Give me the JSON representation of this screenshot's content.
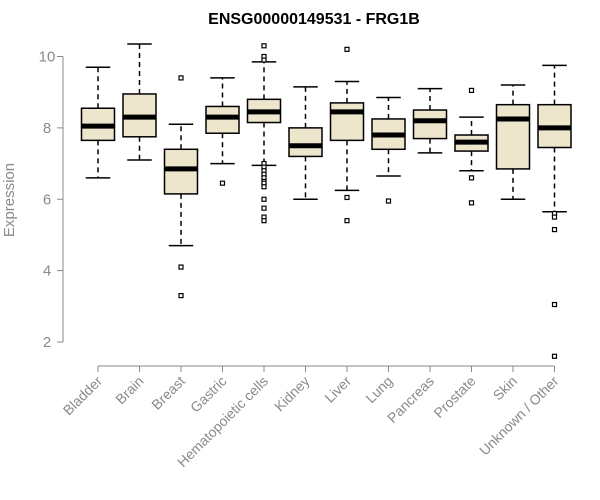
{
  "chart_data": {
    "type": "boxplot",
    "title": "ENSG00000149531 - FRG1B",
    "ylabel": "Expression",
    "xlabel": "",
    "ylim": [
      1.5,
      10.5
    ],
    "yticks": [
      2,
      4,
      6,
      8,
      10
    ],
    "grid": false,
    "legend": "none",
    "colors": {
      "box_fill": "#ede6cc",
      "box_stroke": "#000000",
      "axis": "#8a8a8a"
    },
    "categories": [
      "Bladder",
      "Brain",
      "Breast",
      "Gastric",
      "Hematopoietic cells",
      "Kidney",
      "Liver",
      "Lung",
      "Pancreas",
      "Prostate",
      "Skin",
      "Unknown / Other"
    ],
    "boxes": [
      {
        "category": "Bladder",
        "whisker_low": 6.6,
        "q1": 7.65,
        "median": 8.05,
        "q3": 8.55,
        "whisker_high": 9.7,
        "outliers": []
      },
      {
        "category": "Brain",
        "whisker_low": 7.1,
        "q1": 7.75,
        "median": 8.3,
        "q3": 8.95,
        "whisker_high": 10.35,
        "outliers": []
      },
      {
        "category": "Breast",
        "whisker_low": 4.7,
        "q1": 6.15,
        "median": 6.85,
        "q3": 7.4,
        "whisker_high": 8.1,
        "outliers": [
          9.4,
          4.1,
          3.3
        ]
      },
      {
        "category": "Gastric",
        "whisker_low": 7.0,
        "q1": 7.85,
        "median": 8.3,
        "q3": 8.6,
        "whisker_high": 9.4,
        "outliers": [
          6.45
        ]
      },
      {
        "category": "Hematopoietic cells",
        "whisker_low": 6.95,
        "q1": 8.15,
        "median": 8.45,
        "q3": 8.8,
        "whisker_high": 9.85,
        "outliers": [
          10.3,
          10.0,
          9.9,
          7.0,
          6.9,
          6.8,
          6.7,
          6.6,
          6.5,
          6.45,
          6.35,
          6.0,
          5.75,
          5.5,
          5.4
        ]
      },
      {
        "category": "Kidney",
        "whisker_low": 6.0,
        "q1": 7.2,
        "median": 7.5,
        "q3": 8.0,
        "whisker_high": 9.15,
        "outliers": []
      },
      {
        "category": "Liver",
        "whisker_low": 6.25,
        "q1": 7.65,
        "median": 8.45,
        "q3": 8.7,
        "whisker_high": 9.3,
        "outliers": [
          10.2,
          6.05,
          5.4
        ]
      },
      {
        "category": "Lung",
        "whisker_low": 6.65,
        "q1": 7.4,
        "median": 7.8,
        "q3": 8.25,
        "whisker_high": 8.85,
        "outliers": [
          5.95
        ]
      },
      {
        "category": "Pancreas",
        "whisker_low": 7.3,
        "q1": 7.7,
        "median": 8.2,
        "q3": 8.5,
        "whisker_high": 9.1,
        "outliers": []
      },
      {
        "category": "Prostate",
        "whisker_low": 6.8,
        "q1": 7.35,
        "median": 7.6,
        "q3": 7.8,
        "whisker_high": 8.3,
        "outliers": [
          9.05,
          6.6,
          5.9
        ]
      },
      {
        "category": "Skin",
        "whisker_low": 6.0,
        "q1": 6.85,
        "median": 8.25,
        "q3": 8.65,
        "whisker_high": 9.2,
        "outliers": []
      },
      {
        "category": "Unknown / Other",
        "whisker_low": 5.65,
        "q1": 7.45,
        "median": 8.0,
        "q3": 8.65,
        "whisker_high": 9.75,
        "outliers": [
          5.6,
          5.5,
          5.15,
          3.05,
          1.6
        ]
      }
    ]
  }
}
